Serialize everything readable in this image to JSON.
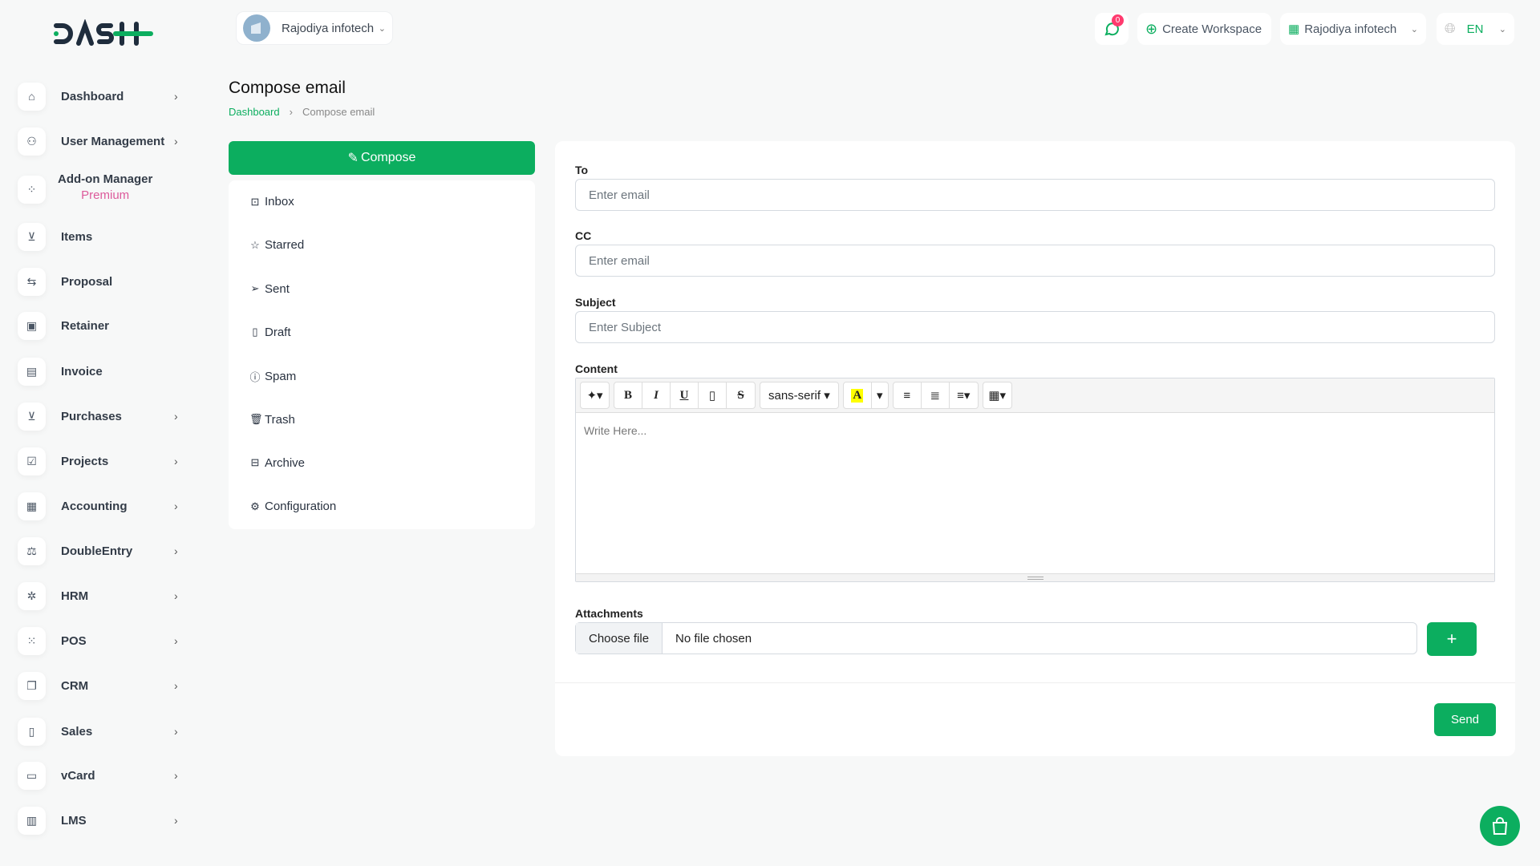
{
  "brand": {
    "logo": "DASH",
    "accent": "#0cae5f"
  },
  "header": {
    "workspace": "Rajodiya infotech",
    "notifications_count": "0",
    "create_workspace": "Create Workspace",
    "company": "Rajodiya infotech",
    "language": "EN"
  },
  "sidebar": {
    "items": [
      {
        "label": "Dashboard",
        "icon": "home-icon",
        "chevron": true
      },
      {
        "label": "User Management",
        "icon": "users-icon",
        "chevron": true
      },
      {
        "label": "Add-on Manager",
        "sub": "Premium",
        "icon": "apps-icon",
        "chevron": false
      },
      {
        "label": "Items",
        "icon": "cart-icon",
        "chevron": false
      },
      {
        "label": "Proposal",
        "icon": "replace-icon",
        "chevron": false
      },
      {
        "label": "Retainer",
        "icon": "floppy-icon",
        "chevron": false
      },
      {
        "label": "Invoice",
        "icon": "file-invoice-icon",
        "chevron": false
      },
      {
        "label": "Purchases",
        "icon": "cart-icon",
        "chevron": true
      },
      {
        "label": "Projects",
        "icon": "checkbox-icon",
        "chevron": true
      },
      {
        "label": "Accounting",
        "icon": "layout-icon",
        "chevron": true
      },
      {
        "label": "DoubleEntry",
        "icon": "scale-icon",
        "chevron": true
      },
      {
        "label": "HRM",
        "icon": "hrm-icon",
        "chevron": true
      },
      {
        "label": "POS",
        "icon": "grid-dots-icon",
        "chevron": true
      },
      {
        "label": "CRM",
        "icon": "stack-icon",
        "chevron": true
      },
      {
        "label": "Sales",
        "icon": "file-icon",
        "chevron": true
      },
      {
        "label": "vCard",
        "icon": "card-icon",
        "chevron": true
      },
      {
        "label": "LMS",
        "icon": "book-icon",
        "chevron": true
      }
    ]
  },
  "page": {
    "title": "Compose email",
    "breadcrumb": [
      "Dashboard",
      "Compose email"
    ]
  },
  "mail": {
    "compose": "Compose",
    "folders": [
      {
        "label": "Inbox",
        "icon": "inbox-icon"
      },
      {
        "label": "Starred",
        "icon": "star-icon"
      },
      {
        "label": "Sent",
        "icon": "send-icon"
      },
      {
        "label": "Draft",
        "icon": "file-icon"
      },
      {
        "label": "Spam",
        "icon": "alert-icon"
      },
      {
        "label": "Trash",
        "icon": "trash-icon"
      },
      {
        "label": "Archive",
        "icon": "archive-icon"
      },
      {
        "label": "Configuration",
        "icon": "gear-icon"
      }
    ]
  },
  "form": {
    "to": {
      "label": "To",
      "placeholder": "Enter email",
      "value": ""
    },
    "cc": {
      "label": "CC",
      "placeholder": "Enter email",
      "value": ""
    },
    "subject": {
      "label": "Subject",
      "placeholder": "Enter Subject",
      "value": ""
    },
    "content": {
      "label": "Content",
      "placeholder": "Write Here...",
      "font": "sans-serif"
    },
    "attachments": {
      "label": "Attachments",
      "choose": "Choose file",
      "status": "No file chosen"
    },
    "send": "Send"
  }
}
